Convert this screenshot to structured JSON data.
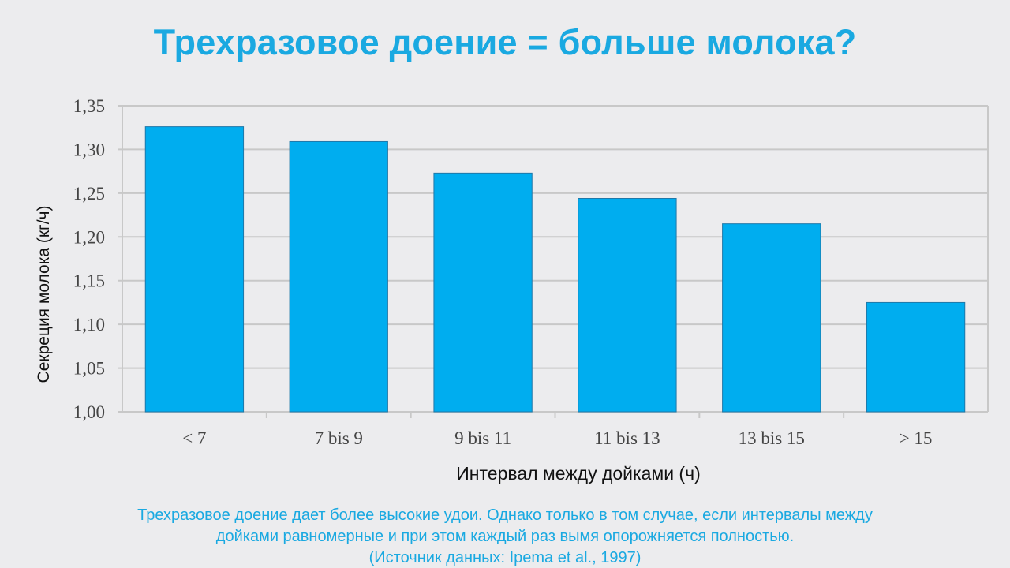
{
  "slide": {
    "title": "Трехразовое доение = больше молока?",
    "caption_lines": [
      "Трехразовое доение дает более высокие удои. Однако только в том случае, если интервалы между",
      "дойками равномерные и при этом каждый раз вымя опорожняется полностью.",
      "(Источник данных: Ipema et al., 1997)"
    ]
  },
  "colors": {
    "bar": "#00adef",
    "bar_stroke": "#1f78a8",
    "title": "#1aa9e1",
    "grid": "#c8c8c8",
    "background": "#ececee"
  },
  "chart_data": {
    "type": "bar",
    "categories": [
      "< 7",
      "7 bis 9",
      "9 bis 11",
      "11 bis 13",
      "13 bis 15",
      "> 15"
    ],
    "values": [
      1.326,
      1.309,
      1.273,
      1.244,
      1.215,
      1.125
    ],
    "xlabel": "Интервал между дойками (ч)",
    "ylabel": "Секреция молока (кг/ч)",
    "ylim": [
      1.0,
      1.35
    ],
    "yticks": [
      "1,00",
      "1,05",
      "1,10",
      "1,15",
      "1,20",
      "1,25",
      "1,30",
      "1,35"
    ],
    "grid": true
  }
}
